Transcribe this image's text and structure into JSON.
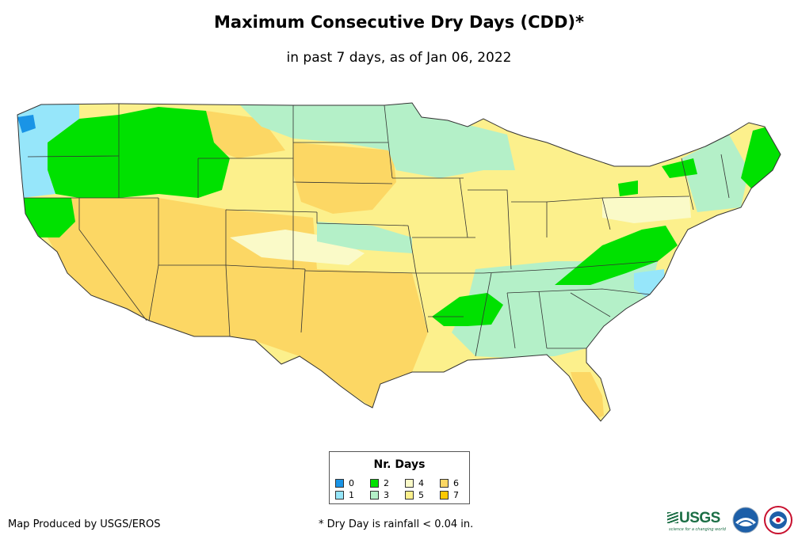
{
  "header": {
    "title": "Maximum Consecutive Dry Days (CDD)*",
    "subtitle": "in past 7 days, as of Jan 06, 2022"
  },
  "legend": {
    "title": "Nr. Days",
    "items": [
      {
        "label": "0",
        "color": "#1a94e6"
      },
      {
        "label": "1",
        "color": "#96e6fa"
      },
      {
        "label": "2",
        "color": "#00e100"
      },
      {
        "label": "3",
        "color": "#b4f0c8"
      },
      {
        "label": "4",
        "color": "#fafac8"
      },
      {
        "label": "5",
        "color": "#fcf08c"
      },
      {
        "label": "6",
        "color": "#fcd764"
      },
      {
        "label": "7",
        "color": "#fcc800"
      }
    ]
  },
  "footer": {
    "credit": "Map Produced by USGS/EROS",
    "footnote": "* Dry Day is rainfall < 0.04 in.",
    "usgs_logo": "USGS",
    "usgs_tagline": "science for a changing world",
    "noaa_logo": "noaa-logo",
    "nws_logo": "nws-logo"
  }
}
